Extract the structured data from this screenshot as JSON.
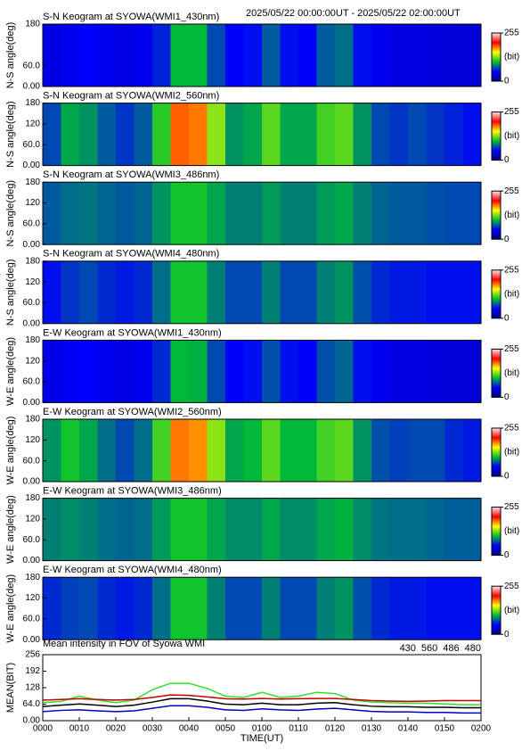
{
  "header": "2025/05/22 00:00:00UT - 2025/05/22 02:00:00UT",
  "colormap": [
    "#00007f",
    "#0000ff",
    "#00c030",
    "#ffff00",
    "#ff0000",
    "#ffe8e8"
  ],
  "chart_data": [
    {
      "type": "heatmap",
      "title": "S-N Keogram at SYOWA(WMI1_430nm)",
      "ylabel": "N-S angle(deg)",
      "xlim": [
        0,
        120
      ],
      "ylim": [
        0,
        180
      ],
      "yticks": [
        {
          "value": 0,
          "label": "0.00"
        },
        {
          "value": 60,
          "label": "60.0"
        },
        180
      ],
      "zlim": [
        0,
        255
      ],
      "zticks": [
        0,
        255
      ],
      "zlabel": "(bit)",
      "x": [
        0,
        5,
        10,
        15,
        20,
        25,
        30,
        35,
        40,
        45,
        50,
        55,
        60,
        65,
        70,
        75,
        80,
        85,
        90,
        95,
        100,
        105,
        110,
        115
      ],
      "values": [
        40,
        45,
        50,
        45,
        40,
        45,
        60,
        100,
        100,
        70,
        50,
        55,
        75,
        55,
        50,
        75,
        80,
        55,
        45,
        40,
        40,
        38,
        36,
        35
      ]
    },
    {
      "type": "heatmap",
      "title": "S-N Keogram at SYOWA(WMI2_560nm)",
      "ylabel": "N-S angle(deg)",
      "xlim": [
        0,
        120
      ],
      "ylim": [
        0,
        180
      ],
      "yticks": [
        {
          "value": 0,
          "label": "0.00"
        },
        {
          "value": 60,
          "label": "60.0"
        },
        120,
        180
      ],
      "zlim": [
        0,
        255
      ],
      "zticks": [
        0,
        255
      ],
      "zlabel": "(bit)",
      "x": [
        0,
        5,
        10,
        15,
        20,
        25,
        30,
        35,
        40,
        45,
        50,
        55,
        60,
        65,
        70,
        75,
        80,
        85,
        90,
        95,
        100,
        105,
        110,
        115
      ],
      "values": [
        70,
        95,
        90,
        75,
        65,
        75,
        110,
        185,
        180,
        130,
        90,
        95,
        120,
        95,
        95,
        115,
        120,
        90,
        70,
        65,
        70,
        65,
        60,
        55
      ]
    },
    {
      "type": "heatmap",
      "title": "S-N Keogram at SYOWA(WMI3_486nm)",
      "ylabel": "N-S angle(deg)",
      "xlim": [
        0,
        120
      ],
      "ylim": [
        0,
        180
      ],
      "yticks": [
        {
          "value": 0,
          "label": "0.00"
        },
        {
          "value": 60,
          "label": "60.0"
        },
        120,
        180
      ],
      "zlim": [
        0,
        255
      ],
      "zticks": [
        0,
        255
      ],
      "zlabel": "(bit)",
      "x": [
        0,
        5,
        10,
        15,
        20,
        25,
        30,
        35,
        40,
        45,
        50,
        55,
        60,
        65,
        70,
        75,
        80,
        85,
        90,
        95,
        100,
        105,
        110,
        115
      ],
      "values": [
        75,
        80,
        82,
        78,
        75,
        78,
        90,
        105,
        105,
        95,
        85,
        85,
        92,
        85,
        85,
        92,
        95,
        85,
        78,
        75,
        75,
        72,
        70,
        70
      ]
    },
    {
      "type": "heatmap",
      "title": "S-N Keogram at SYOWA(WMI4_480nm)",
      "ylabel": "N-S angle(deg)",
      "xlim": [
        0,
        120
      ],
      "ylim": [
        0,
        180
      ],
      "yticks": [
        {
          "value": 0,
          "label": "0.00"
        },
        {
          "value": 60,
          "label": "60.0"
        },
        120,
        180
      ],
      "zlim": [
        0,
        255
      ],
      "zticks": [
        0,
        255
      ],
      "zlabel": "(bit)",
      "x": [
        0,
        5,
        10,
        15,
        20,
        25,
        30,
        35,
        40,
        45,
        50,
        55,
        60,
        65,
        70,
        75,
        80,
        85,
        90,
        95,
        100,
        105,
        110,
        115
      ],
      "values": [
        55,
        65,
        70,
        62,
        58,
        62,
        80,
        105,
        105,
        85,
        70,
        70,
        85,
        70,
        70,
        85,
        90,
        72,
        62,
        58,
        58,
        55,
        55,
        55
      ]
    },
    {
      "type": "heatmap",
      "title": "E-W Keogram at SYOWA(WMI1_430nm)",
      "ylabel": "W-E angle(deg)",
      "xlim": [
        0,
        120
      ],
      "ylim": [
        0,
        180
      ],
      "yticks": [
        {
          "value": 0,
          "label": "0.00"
        },
        {
          "value": 60,
          "label": "60.0"
        },
        120,
        180
      ],
      "zlim": [
        0,
        255
      ],
      "zticks": [
        0,
        255
      ],
      "zlabel": "(bit)",
      "x": [
        0,
        5,
        10,
        15,
        20,
        25,
        30,
        35,
        40,
        45,
        50,
        55,
        60,
        65,
        70,
        75,
        80,
        85,
        90,
        95,
        100,
        105,
        110,
        115
      ],
      "values": [
        42,
        48,
        50,
        45,
        40,
        45,
        62,
        100,
        98,
        70,
        50,
        55,
        72,
        55,
        50,
        72,
        78,
        55,
        45,
        40,
        40,
        38,
        36,
        35
      ]
    },
    {
      "type": "heatmap",
      "title": "E-W Keogram at SYOWA(WMI2_560nm)",
      "ylabel": "W-E angle(deg)",
      "xlim": [
        0,
        120
      ],
      "ylim": [
        0,
        180
      ],
      "yticks": [
        {
          "value": 0,
          "label": "0.00"
        },
        {
          "value": 60,
          "label": "60.0"
        },
        120,
        180
      ],
      "zlim": [
        0,
        255
      ],
      "zticks": [
        0,
        255
      ],
      "zlabel": "(bit)",
      "x": [
        0,
        5,
        10,
        15,
        20,
        25,
        30,
        35,
        40,
        45,
        50,
        55,
        60,
        65,
        70,
        75,
        80,
        85,
        90,
        95,
        100,
        105,
        110,
        115
      ],
      "values": [
        90,
        105,
        95,
        80,
        70,
        80,
        115,
        180,
        175,
        130,
        95,
        100,
        120,
        100,
        100,
        115,
        120,
        90,
        72,
        68,
        70,
        70,
        62,
        58
      ]
    },
    {
      "type": "heatmap",
      "title": "E-W Keogram at SYOWA(WMI3_486nm)",
      "ylabel": "W-E angle(deg)",
      "xlim": [
        0,
        120
      ],
      "ylim": [
        0,
        180
      ],
      "yticks": [
        {
          "value": 0,
          "label": "0.00"
        },
        {
          "value": 60,
          "label": "60.0"
        },
        120,
        180
      ],
      "zlim": [
        0,
        255
      ],
      "zticks": [
        0,
        255
      ],
      "zlabel": "(bit)",
      "x": [
        0,
        5,
        10,
        15,
        20,
        25,
        30,
        35,
        40,
        45,
        50,
        55,
        60,
        65,
        70,
        75,
        80,
        85,
        90,
        95,
        100,
        105,
        110,
        115
      ],
      "values": [
        85,
        88,
        85,
        80,
        78,
        80,
        92,
        105,
        105,
        95,
        88,
        88,
        95,
        88,
        88,
        95,
        98,
        88,
        82,
        80,
        80,
        78,
        76,
        76
      ]
    },
    {
      "type": "heatmap",
      "title": "E-W Keogram at SYOWA(WMI4_480nm)",
      "ylabel": "W-E angle(deg)",
      "xlim": [
        0,
        120
      ],
      "ylim": [
        0,
        180
      ],
      "yticks": [
        {
          "value": 0,
          "label": "0.00"
        },
        {
          "value": 60,
          "label": "60.0"
        },
        120,
        180
      ],
      "zlim": [
        0,
        255
      ],
      "zticks": [
        0,
        255
      ],
      "zlabel": "(bit)",
      "x": [
        0,
        5,
        10,
        15,
        20,
        25,
        30,
        35,
        40,
        45,
        50,
        55,
        60,
        65,
        70,
        75,
        80,
        85,
        90,
        95,
        100,
        105,
        110,
        115
      ],
      "values": [
        62,
        68,
        70,
        62,
        58,
        62,
        80,
        105,
        105,
        85,
        70,
        70,
        85,
        70,
        70,
        85,
        90,
        72,
        62,
        58,
        58,
        55,
        55,
        55
      ]
    },
    {
      "type": "line",
      "title": "Mean intensity in FOV of Syowa WMI",
      "xlabel": "TIME(UT)",
      "ylabel": "MEAN(BIT)",
      "xlim": [
        0,
        120
      ],
      "ylim": [
        0,
        256
      ],
      "xticks": [
        {
          "value": 0,
          "label": "0000"
        },
        {
          "value": 10,
          "label": "0010"
        },
        {
          "value": 20,
          "label": "0020"
        },
        {
          "value": 30,
          "label": "0030"
        },
        {
          "value": 40,
          "label": "0040"
        },
        {
          "value": 50,
          "label": "0050"
        },
        {
          "value": 60,
          "label": "0100"
        },
        {
          "value": 70,
          "label": "0110"
        },
        {
          "value": 80,
          "label": "0120"
        },
        {
          "value": 90,
          "label": "0130"
        },
        {
          "value": 100,
          "label": "0140"
        },
        {
          "value": 110,
          "label": "0150"
        },
        {
          "value": 120,
          "label": "0200"
        }
      ],
      "yticks": [
        {
          "value": 0,
          "label": "0.00"
        },
        {
          "value": 64,
          "label": "64.0"
        },
        128,
        192,
        256
      ],
      "x": [
        0,
        5,
        10,
        15,
        20,
        25,
        30,
        35,
        40,
        45,
        50,
        55,
        60,
        65,
        70,
        75,
        80,
        85,
        90,
        95,
        100,
        105,
        110,
        115,
        120
      ],
      "series": [
        {
          "name": "430",
          "color": "#0000c0",
          "values": [
            35,
            40,
            42,
            38,
            35,
            38,
            48,
            58,
            58,
            52,
            42,
            40,
            46,
            42,
            40,
            45,
            48,
            42,
            36,
            34,
            34,
            32,
            32,
            30,
            30
          ]
        },
        {
          "name": "560",
          "color": "#30e030",
          "values": [
            70,
            75,
            95,
            80,
            70,
            80,
            120,
            145,
            145,
            125,
            95,
            90,
            110,
            90,
            95,
            110,
            105,
            80,
            72,
            70,
            68,
            68,
            65,
            62,
            62
          ]
        },
        {
          "name": "486",
          "color": "#c00000",
          "values": [
            80,
            82,
            85,
            82,
            80,
            82,
            90,
            100,
            98,
            92,
            85,
            84,
            86,
            84,
            85,
            86,
            86,
            82,
            78,
            76,
            75,
            76,
            78,
            78,
            78
          ]
        },
        {
          "name": "480",
          "color": "#000000",
          "values": [
            55,
            60,
            65,
            60,
            55,
            60,
            72,
            85,
            85,
            76,
            64,
            62,
            68,
            62,
            62,
            68,
            70,
            62,
            56,
            54,
            54,
            52,
            52,
            50,
            50
          ]
        }
      ]
    }
  ]
}
